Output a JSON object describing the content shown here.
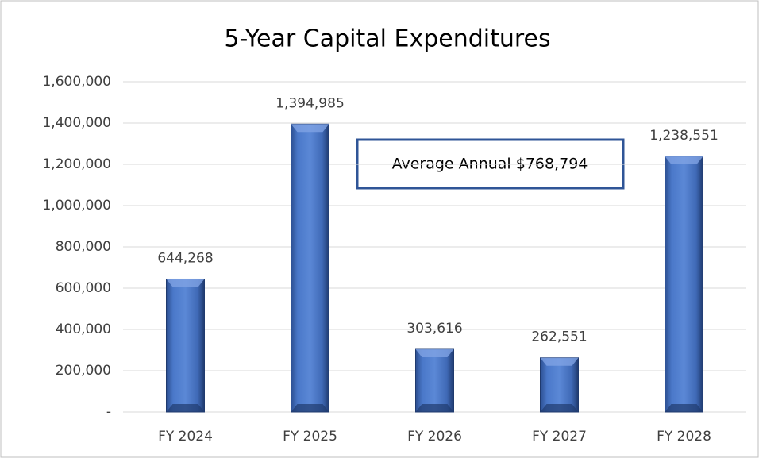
{
  "chart_data": {
    "type": "bar",
    "title": "5-Year Capital Expenditures",
    "categories": [
      "FY 2024",
      "FY 2025",
      "FY 2026",
      "FY 2027",
      "FY 2028"
    ],
    "values": [
      644268,
      1394985,
      303616,
      262551,
      1238551
    ],
    "value_labels": [
      "644,268",
      "1,394,985",
      "303,616",
      "262,551",
      "1,238,551"
    ],
    "color": "#4472c4",
    "ylim": [
      0,
      1600000
    ],
    "yticks": [
      {
        "value": 0,
        "label": "-"
      },
      {
        "value": 200000,
        "label": "200,000"
      },
      {
        "value": 400000,
        "label": "400,000"
      },
      {
        "value": 600000,
        "label": "600,000"
      },
      {
        "value": 800000,
        "label": "800,000"
      },
      {
        "value": 1000000,
        "label": "1,000,000"
      },
      {
        "value": 1200000,
        "label": "1,200,000"
      },
      {
        "value": 1400000,
        "label": "1,400,000"
      },
      {
        "value": 1600000,
        "label": "1,600,000"
      }
    ],
    "grid": true,
    "annotation": "Average Annual $768,794"
  }
}
